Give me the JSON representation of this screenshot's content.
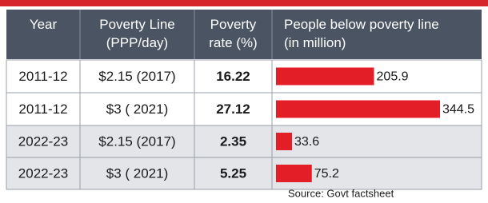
{
  "table": {
    "header": [
      "Year",
      "Poverty Line\n(PPP/day)",
      "Poverty\nrate (%)",
      "People below poverty line\n(in million)"
    ],
    "rows": [
      [
        "2011-12",
        "$2.15 (2017)",
        "16.22",
        205.9
      ],
      [
        "2011-12",
        "$3 ( 2021)",
        "27.12",
        344.5
      ],
      [
        "2022-23",
        "$2.15 (2017)",
        "2.35",
        33.6
      ],
      [
        "2022-23",
        "$3 ( 2021)",
        "5.25",
        75.2
      ]
    ],
    "bar_color": "#e41e26",
    "source": "Source: Govt factsheet"
  }
}
